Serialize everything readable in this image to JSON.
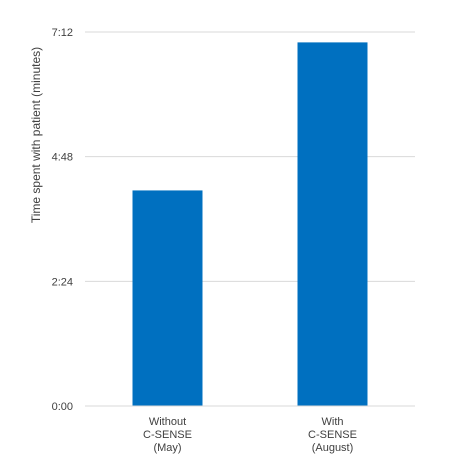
{
  "chart_data": {
    "type": "bar",
    "title": "",
    "xlabel": "",
    "ylabel": "Time spent with patient (minutes)",
    "categories": [
      [
        "Without",
        "C-SENSE",
        "(May)"
      ],
      [
        "With",
        "C-SENSE",
        "(August)"
      ]
    ],
    "values_minutes": [
      4.15,
      7.0
    ],
    "ylim": [
      0,
      7.2
    ],
    "yticks": [
      0,
      2.4,
      4.8,
      7.2
    ],
    "ytick_labels": [
      "0:00",
      "2:24",
      "4:48",
      "7:12"
    ],
    "grid": "horizontal",
    "legend": "none",
    "bar_color": "#0070c0"
  }
}
